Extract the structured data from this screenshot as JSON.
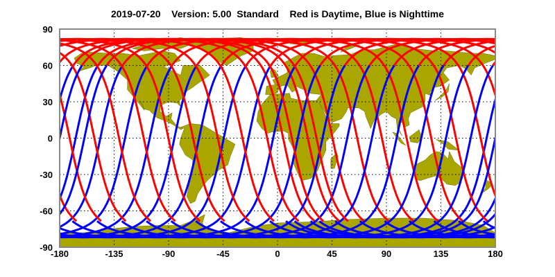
{
  "title": {
    "date": "2019-07-20",
    "version": "Version: 5.00",
    "mode": "Standard",
    "legend_text": "Red is Daytime, Blue is Nighttime"
  },
  "map": {
    "projection": "equirectangular",
    "lon_range": [
      -180,
      180
    ],
    "lat_range": [
      -90,
      90
    ],
    "x_ticks": [
      "-180",
      "-135",
      "-90",
      "-45",
      "0",
      "45",
      "90",
      "135",
      "180"
    ],
    "y_ticks": [
      "90",
      "60",
      "30",
      "0",
      "-30",
      "-60",
      "-90"
    ],
    "grid": "dotted",
    "colors": {
      "land": "#a9a600",
      "day_track": "#ff0000",
      "night_track": "#0000ff",
      "frame": "#888888",
      "grid": "#000000"
    }
  }
}
